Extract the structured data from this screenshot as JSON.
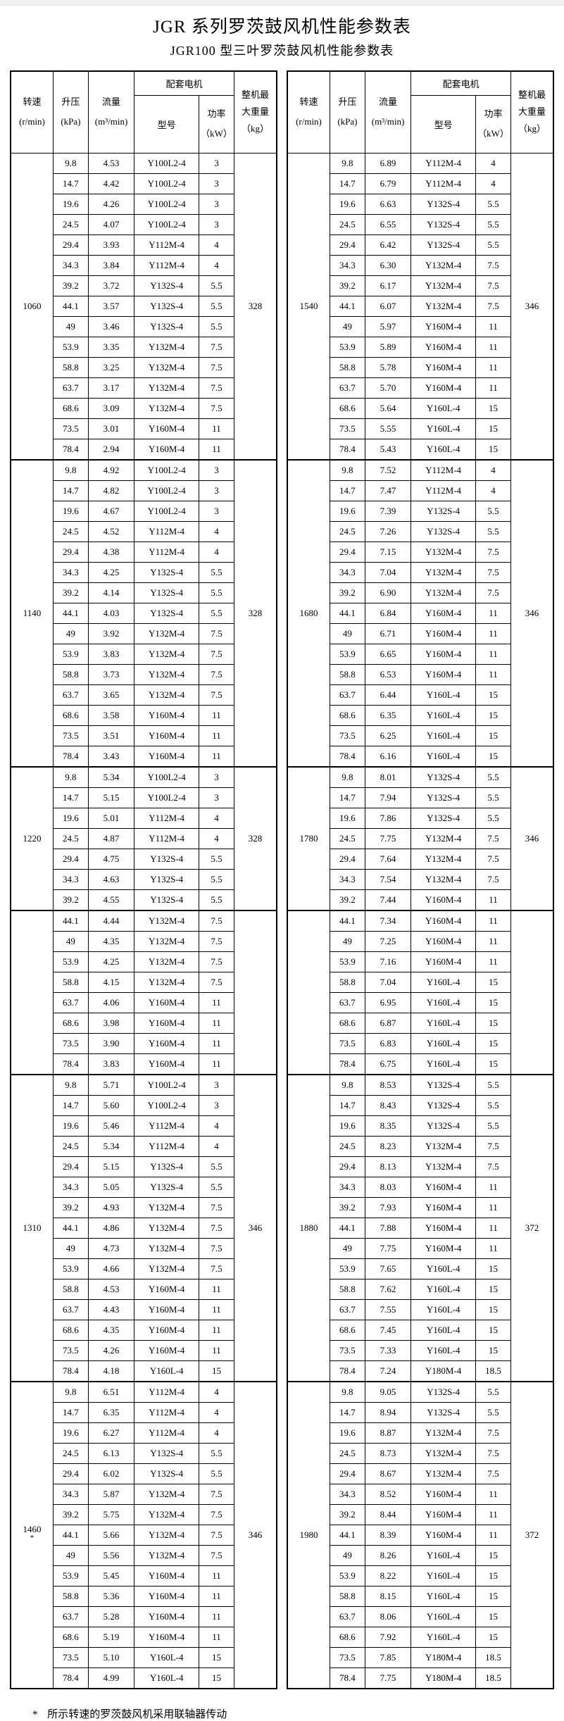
{
  "page": {
    "title": "JGR 系列罗茨鼓风机性能参数表",
    "subtitle": "JGR100 型三叶罗茨鼓风机性能参数表",
    "footnote_marker": "*",
    "footnote_text": "所示转速的罗茨鼓风机采用联轴器传动"
  },
  "header": {
    "speed_label": "转速",
    "speed_unit": "(r/min)",
    "pressure_label": "升压",
    "pressure_unit": "(kPa)",
    "flow_label": "流量",
    "flow_unit": "(m³/min)",
    "motor_group_label": "配套电机",
    "model_label": "型号",
    "power_label": "功率",
    "power_unit": "（kW）",
    "weight_label_line1": "整机最",
    "weight_label_line2": "大重量",
    "weight_unit": "（kg）"
  },
  "tables": [
    {
      "blocks": [
        {
          "speed": "1060",
          "speed_note": "",
          "weight": "328",
          "rows": [
            [
              "9.8",
              "4.53",
              "Y100L2-4",
              "3"
            ],
            [
              "14.7",
              "4.42",
              "Y100L2-4",
              "3"
            ],
            [
              "19.6",
              "4.26",
              "Y100L2-4",
              "3"
            ],
            [
              "24.5",
              "4.07",
              "Y100L2-4",
              "3"
            ],
            [
              "29.4",
              "3.93",
              "Y112M-4",
              "4"
            ],
            [
              "34.3",
              "3.84",
              "Y112M-4",
              "4"
            ],
            [
              "39.2",
              "3.72",
              "Y132S-4",
              "5.5"
            ],
            [
              "44.1",
              "3.57",
              "Y132S-4",
              "5.5"
            ],
            [
              "49",
              "3.46",
              "Y132S-4",
              "5.5"
            ],
            [
              "53.9",
              "3.35",
              "Y132M-4",
              "7.5"
            ],
            [
              "58.8",
              "3.25",
              "Y132M-4",
              "7.5"
            ],
            [
              "63.7",
              "3.17",
              "Y132M-4",
              "7.5"
            ],
            [
              "68.6",
              "3.09",
              "Y132M-4",
              "7.5"
            ],
            [
              "73.5",
              "3.01",
              "Y160M-4",
              "11"
            ],
            [
              "78.4",
              "2.94",
              "Y160M-4",
              "11"
            ]
          ]
        },
        {
          "speed": "1140",
          "speed_note": "",
          "weight": "328",
          "rows": [
            [
              "9.8",
              "4.92",
              "Y100L2-4",
              "3"
            ],
            [
              "14.7",
              "4.82",
              "Y100L2-4",
              "3"
            ],
            [
              "19.6",
              "4.67",
              "Y100L2-4",
              "3"
            ],
            [
              "24.5",
              "4.52",
              "Y112M-4",
              "4"
            ],
            [
              "29.4",
              "4.38",
              "Y112M-4",
              "4"
            ],
            [
              "34.3",
              "4.25",
              "Y132S-4",
              "5.5"
            ],
            [
              "39.2",
              "4.14",
              "Y132S-4",
              "5.5"
            ],
            [
              "44.1",
              "4.03",
              "Y132S-4",
              "5.5"
            ],
            [
              "49",
              "3.92",
              "Y132M-4",
              "7.5"
            ],
            [
              "53.9",
              "3.83",
              "Y132M-4",
              "7.5"
            ],
            [
              "58.8",
              "3.73",
              "Y132M-4",
              "7.5"
            ],
            [
              "63.7",
              "3.65",
              "Y132M-4",
              "7.5"
            ],
            [
              "68.6",
              "3.58",
              "Y160M-4",
              "11"
            ],
            [
              "73.5",
              "3.51",
              "Y160M-4",
              "11"
            ],
            [
              "78.4",
              "3.43",
              "Y160M-4",
              "11"
            ]
          ]
        },
        {
          "speed": "1220",
          "speed_note": "",
          "weight": "328",
          "rows": [
            [
              "9.8",
              "5.34",
              "Y100L2-4",
              "3"
            ],
            [
              "14.7",
              "5.15",
              "Y100L2-4",
              "3"
            ],
            [
              "19.6",
              "5.01",
              "Y112M-4",
              "4"
            ],
            [
              "24.5",
              "4.87",
              "Y112M-4",
              "4"
            ],
            [
              "29.4",
              "4.75",
              "Y132S-4",
              "5.5"
            ],
            [
              "34.3",
              "4.63",
              "Y132S-4",
              "5.5"
            ],
            [
              "39.2",
              "4.55",
              "Y132S-4",
              "5.5"
            ]
          ]
        },
        {
          "speed": "",
          "speed_note": "",
          "weight": "",
          "rows": [
            [
              "44.1",
              "4.44",
              "Y132M-4",
              "7.5"
            ],
            [
              "49",
              "4.35",
              "Y132M-4",
              "7.5"
            ],
            [
              "53.9",
              "4.25",
              "Y132M-4",
              "7.5"
            ],
            [
              "58.8",
              "4.15",
              "Y132M-4",
              "7.5"
            ],
            [
              "63.7",
              "4.06",
              "Y160M-4",
              "11"
            ],
            [
              "68.6",
              "3.98",
              "Y160M-4",
              "11"
            ],
            [
              "73.5",
              "3.90",
              "Y160M-4",
              "11"
            ],
            [
              "78.4",
              "3.83",
              "Y160M-4",
              "11"
            ]
          ]
        },
        {
          "speed": "1310",
          "speed_note": "",
          "weight": "346",
          "rows": [
            [
              "9.8",
              "5.71",
              "Y100L2-4",
              "3"
            ],
            [
              "14.7",
              "5.60",
              "Y100L2-4",
              "3"
            ],
            [
              "19.6",
              "5.46",
              "Y112M-4",
              "4"
            ],
            [
              "24.5",
              "5.34",
              "Y112M-4",
              "4"
            ],
            [
              "29.4",
              "5.15",
              "Y132S-4",
              "5.5"
            ],
            [
              "34.3",
              "5.05",
              "Y132S-4",
              "5.5"
            ],
            [
              "39.2",
              "4.93",
              "Y132M-4",
              "7.5"
            ],
            [
              "44.1",
              "4.86",
              "Y132M-4",
              "7.5"
            ],
            [
              "49",
              "4.73",
              "Y132M-4",
              "7.5"
            ],
            [
              "53.9",
              "4.66",
              "Y132M-4",
              "7.5"
            ],
            [
              "58.8",
              "4.53",
              "Y160M-4",
              "11"
            ],
            [
              "63.7",
              "4.43",
              "Y160M-4",
              "11"
            ],
            [
              "68.6",
              "4.35",
              "Y160M-4",
              "11"
            ],
            [
              "73.5",
              "4.26",
              "Y160M-4",
              "11"
            ],
            [
              "78.4",
              "4.18",
              "Y160L-4",
              "15"
            ]
          ]
        },
        {
          "speed": "1460",
          "speed_note": "*",
          "weight": "346",
          "rows": [
            [
              "9.8",
              "6.51",
              "Y112M-4",
              "4"
            ],
            [
              "14.7",
              "6.35",
              "Y112M-4",
              "4"
            ],
            [
              "19.6",
              "6.27",
              "Y112M-4",
              "4"
            ],
            [
              "24.5",
              "6.13",
              "Y132S-4",
              "5.5"
            ],
            [
              "29.4",
              "6.02",
              "Y132S-4",
              "5.5"
            ],
            [
              "34.3",
              "5.87",
              "Y132M-4",
              "7.5"
            ],
            [
              "39.2",
              "5.75",
              "Y132M-4",
              "7.5"
            ],
            [
              "44.1",
              "5.66",
              "Y132M-4",
              "7.5"
            ],
            [
              "49",
              "5.56",
              "Y132M-4",
              "7.5"
            ],
            [
              "53.9",
              "5.45",
              "Y160M-4",
              "11"
            ],
            [
              "58.8",
              "5.36",
              "Y160M-4",
              "11"
            ],
            [
              "63.7",
              "5.28",
              "Y160M-4",
              "11"
            ],
            [
              "68.6",
              "5.19",
              "Y160M-4",
              "11"
            ],
            [
              "73.5",
              "5.10",
              "Y160L-4",
              "15"
            ],
            [
              "78.4",
              "4.99",
              "Y160L-4",
              "15"
            ]
          ]
        }
      ]
    },
    {
      "blocks": [
        {
          "speed": "1540",
          "speed_note": "",
          "weight": "346",
          "rows": [
            [
              "9.8",
              "6.89",
              "Y112M-4",
              "4"
            ],
            [
              "14.7",
              "6.79",
              "Y112M-4",
              "4"
            ],
            [
              "19.6",
              "6.63",
              "Y132S-4",
              "5.5"
            ],
            [
              "24.5",
              "6.55",
              "Y132S-4",
              "5.5"
            ],
            [
              "29.4",
              "6.42",
              "Y132S-4",
              "5.5"
            ],
            [
              "34.3",
              "6.30",
              "Y132M-4",
              "7.5"
            ],
            [
              "39.2",
              "6.17",
              "Y132M-4",
              "7.5"
            ],
            [
              "44.1",
              "6.07",
              "Y132M-4",
              "7.5"
            ],
            [
              "49",
              "5.97",
              "Y160M-4",
              "11"
            ],
            [
              "53.9",
              "5.89",
              "Y160M-4",
              "11"
            ],
            [
              "58.8",
              "5.78",
              "Y160M-4",
              "11"
            ],
            [
              "63.7",
              "5.70",
              "Y160M-4",
              "11"
            ],
            [
              "68.6",
              "5.64",
              "Y160L-4",
              "15"
            ],
            [
              "73.5",
              "5.55",
              "Y160L-4",
              "15"
            ],
            [
              "78.4",
              "5.43",
              "Y160L-4",
              "15"
            ]
          ]
        },
        {
          "speed": "1680",
          "speed_note": "",
          "weight": "346",
          "rows": [
            [
              "9.8",
              "7.52",
              "Y112M-4",
              "4"
            ],
            [
              "14.7",
              "7.47",
              "Y112M-4",
              "4"
            ],
            [
              "19.6",
              "7.39",
              "Y132S-4",
              "5.5"
            ],
            [
              "24.5",
              "7.26",
              "Y132S-4",
              "5.5"
            ],
            [
              "29.4",
              "7.15",
              "Y132M-4",
              "7.5"
            ],
            [
              "34.3",
              "7.04",
              "Y132M-4",
              "7.5"
            ],
            [
              "39.2",
              "6.90",
              "Y132M-4",
              "7.5"
            ],
            [
              "44.1",
              "6.84",
              "Y160M-4",
              "11"
            ],
            [
              "49",
              "6.71",
              "Y160M-4",
              "11"
            ],
            [
              "53.9",
              "6.65",
              "Y160M-4",
              "11"
            ],
            [
              "58.8",
              "6.53",
              "Y160M-4",
              "11"
            ],
            [
              "63.7",
              "6.44",
              "Y160L-4",
              "15"
            ],
            [
              "68.6",
              "6.35",
              "Y160L-4",
              "15"
            ],
            [
              "73.5",
              "6.25",
              "Y160L-4",
              "15"
            ],
            [
              "78.4",
              "6.16",
              "Y160L-4",
              "15"
            ]
          ]
        },
        {
          "speed": "1780",
          "speed_note": "",
          "weight": "346",
          "rows": [
            [
              "9.8",
              "8.01",
              "Y132S-4",
              "5.5"
            ],
            [
              "14.7",
              "7.94",
              "Y132S-4",
              "5.5"
            ],
            [
              "19.6",
              "7.86",
              "Y132S-4",
              "5.5"
            ],
            [
              "24.5",
              "7.75",
              "Y132M-4",
              "7.5"
            ],
            [
              "29.4",
              "7.64",
              "Y132M-4",
              "7.5"
            ],
            [
              "34.3",
              "7.54",
              "Y132M-4",
              "7.5"
            ],
            [
              "39.2",
              "7.44",
              "Y160M-4",
              "11"
            ]
          ]
        },
        {
          "speed": "",
          "speed_note": "",
          "weight": "",
          "rows": [
            [
              "44.1",
              "7.34",
              "Y160M-4",
              "11"
            ],
            [
              "49",
              "7.25",
              "Y160M-4",
              "11"
            ],
            [
              "53.9",
              "7.16",
              "Y160M-4",
              "11"
            ],
            [
              "58.8",
              "7.04",
              "Y160L-4",
              "15"
            ],
            [
              "63.7",
              "6.95",
              "Y160L-4",
              "15"
            ],
            [
              "68.6",
              "6.87",
              "Y160L-4",
              "15"
            ],
            [
              "73.5",
              "6.83",
              "Y160L-4",
              "15"
            ],
            [
              "78.4",
              "6.75",
              "Y160L-4",
              "15"
            ]
          ]
        },
        {
          "speed": "1880",
          "speed_note": "",
          "weight": "372",
          "rows": [
            [
              "9.8",
              "8.53",
              "Y132S-4",
              "5.5"
            ],
            [
              "14.7",
              "8.43",
              "Y132S-4",
              "5.5"
            ],
            [
              "19.6",
              "8.35",
              "Y132S-4",
              "5.5"
            ],
            [
              "24.5",
              "8.23",
              "Y132M-4",
              "7.5"
            ],
            [
              "29.4",
              "8.13",
              "Y132M-4",
              "7.5"
            ],
            [
              "34.3",
              "8.03",
              "Y160M-4",
              "11"
            ],
            [
              "39.2",
              "7.93",
              "Y160M-4",
              "11"
            ],
            [
              "44.1",
              "7.88",
              "Y160M-4",
              "11"
            ],
            [
              "49",
              "7.75",
              "Y160M-4",
              "11"
            ],
            [
              "53.9",
              "7.65",
              "Y160L-4",
              "15"
            ],
            [
              "58.8",
              "7.62",
              "Y160L-4",
              "15"
            ],
            [
              "63.7",
              "7.55",
              "Y160L-4",
              "15"
            ],
            [
              "68.6",
              "7.45",
              "Y160L-4",
              "15"
            ],
            [
              "73.5",
              "7.33",
              "Y160L-4",
              "15"
            ],
            [
              "78.4",
              "7.24",
              "Y180M-4",
              "18.5"
            ]
          ]
        },
        {
          "speed": "1980",
          "speed_note": "",
          "weight": "372",
          "rows": [
            [
              "9.8",
              "9.05",
              "Y132S-4",
              "5.5"
            ],
            [
              "14.7",
              "8.94",
              "Y132S-4",
              "5.5"
            ],
            [
              "19.6",
              "8.87",
              "Y132M-4",
              "7.5"
            ],
            [
              "24.5",
              "8.73",
              "Y132M-4",
              "7.5"
            ],
            [
              "29.4",
              "8.67",
              "Y132M-4",
              "7.5"
            ],
            [
              "34.3",
              "8.52",
              "Y160M-4",
              "11"
            ],
            [
              "39.2",
              "8.44",
              "Y160M-4",
              "11"
            ],
            [
              "44.1",
              "8.39",
              "Y160M-4",
              "11"
            ],
            [
              "49",
              "8.26",
              "Y160L-4",
              "15"
            ],
            [
              "53.9",
              "8.22",
              "Y160L-4",
              "15"
            ],
            [
              "58.8",
              "8.15",
              "Y160L-4",
              "15"
            ],
            [
              "63.7",
              "8.06",
              "Y160L-4",
              "15"
            ],
            [
              "68.6",
              "7.92",
              "Y160L-4",
              "15"
            ],
            [
              "73.5",
              "7.85",
              "Y180M-4",
              "18.5"
            ],
            [
              "78.4",
              "7.75",
              "Y180M-4",
              "18.5"
            ]
          ]
        }
      ]
    }
  ]
}
